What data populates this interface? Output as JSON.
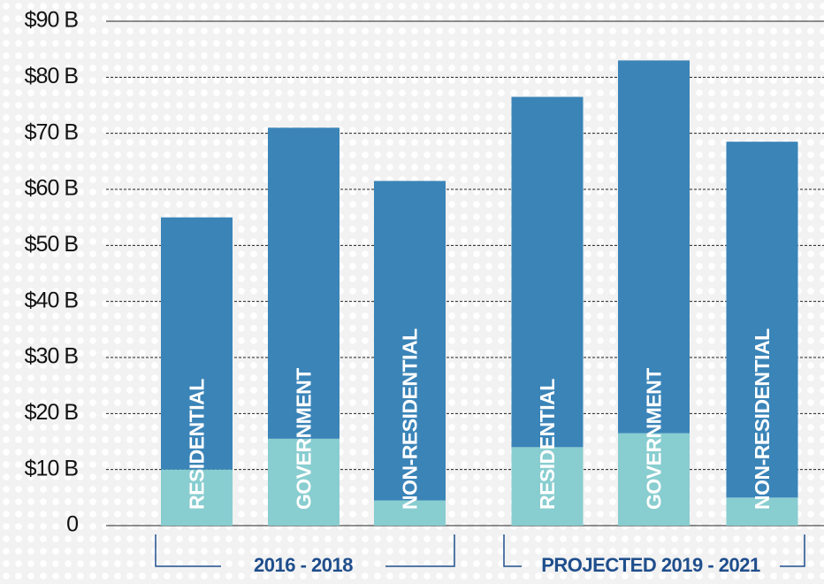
{
  "chart_data": {
    "type": "stacked_bar",
    "categories": [
      "RESIDENTIAL",
      "GOVERNMENT",
      "NON-RESIDENTIAL",
      "RESIDENTIAL",
      "GOVERNMENT",
      "NON-RESIDENTIAL"
    ],
    "groups": [
      "2016 - 2018",
      "PROJECTED 2019 - 2021"
    ],
    "series": [
      {
        "color": "#88cdd0",
        "values": [
          10,
          15.5,
          4.5,
          14,
          16.5,
          5
        ]
      },
      {
        "color": "#3a84b8",
        "values": [
          45,
          55.5,
          57,
          62.5,
          66.5,
          63.5
        ]
      }
    ],
    "ylim": [
      0,
      90
    ],
    "yticks": [
      0,
      {
        "value": 10,
        "label": "$10 B"
      },
      {
        "value": 20,
        "label": "$20 B"
      },
      {
        "value": 30,
        "label": "$30 B"
      },
      {
        "value": 40,
        "label": "$40 B"
      },
      {
        "value": 50,
        "label": "$50 B"
      },
      {
        "value": 60,
        "label": "$60 B"
      },
      {
        "value": 70,
        "label": "$70 B"
      },
      {
        "value": 80,
        "label": "$80 B"
      },
      {
        "value": 90,
        "label": "$90 B"
      }
    ],
    "grid": true
  }
}
